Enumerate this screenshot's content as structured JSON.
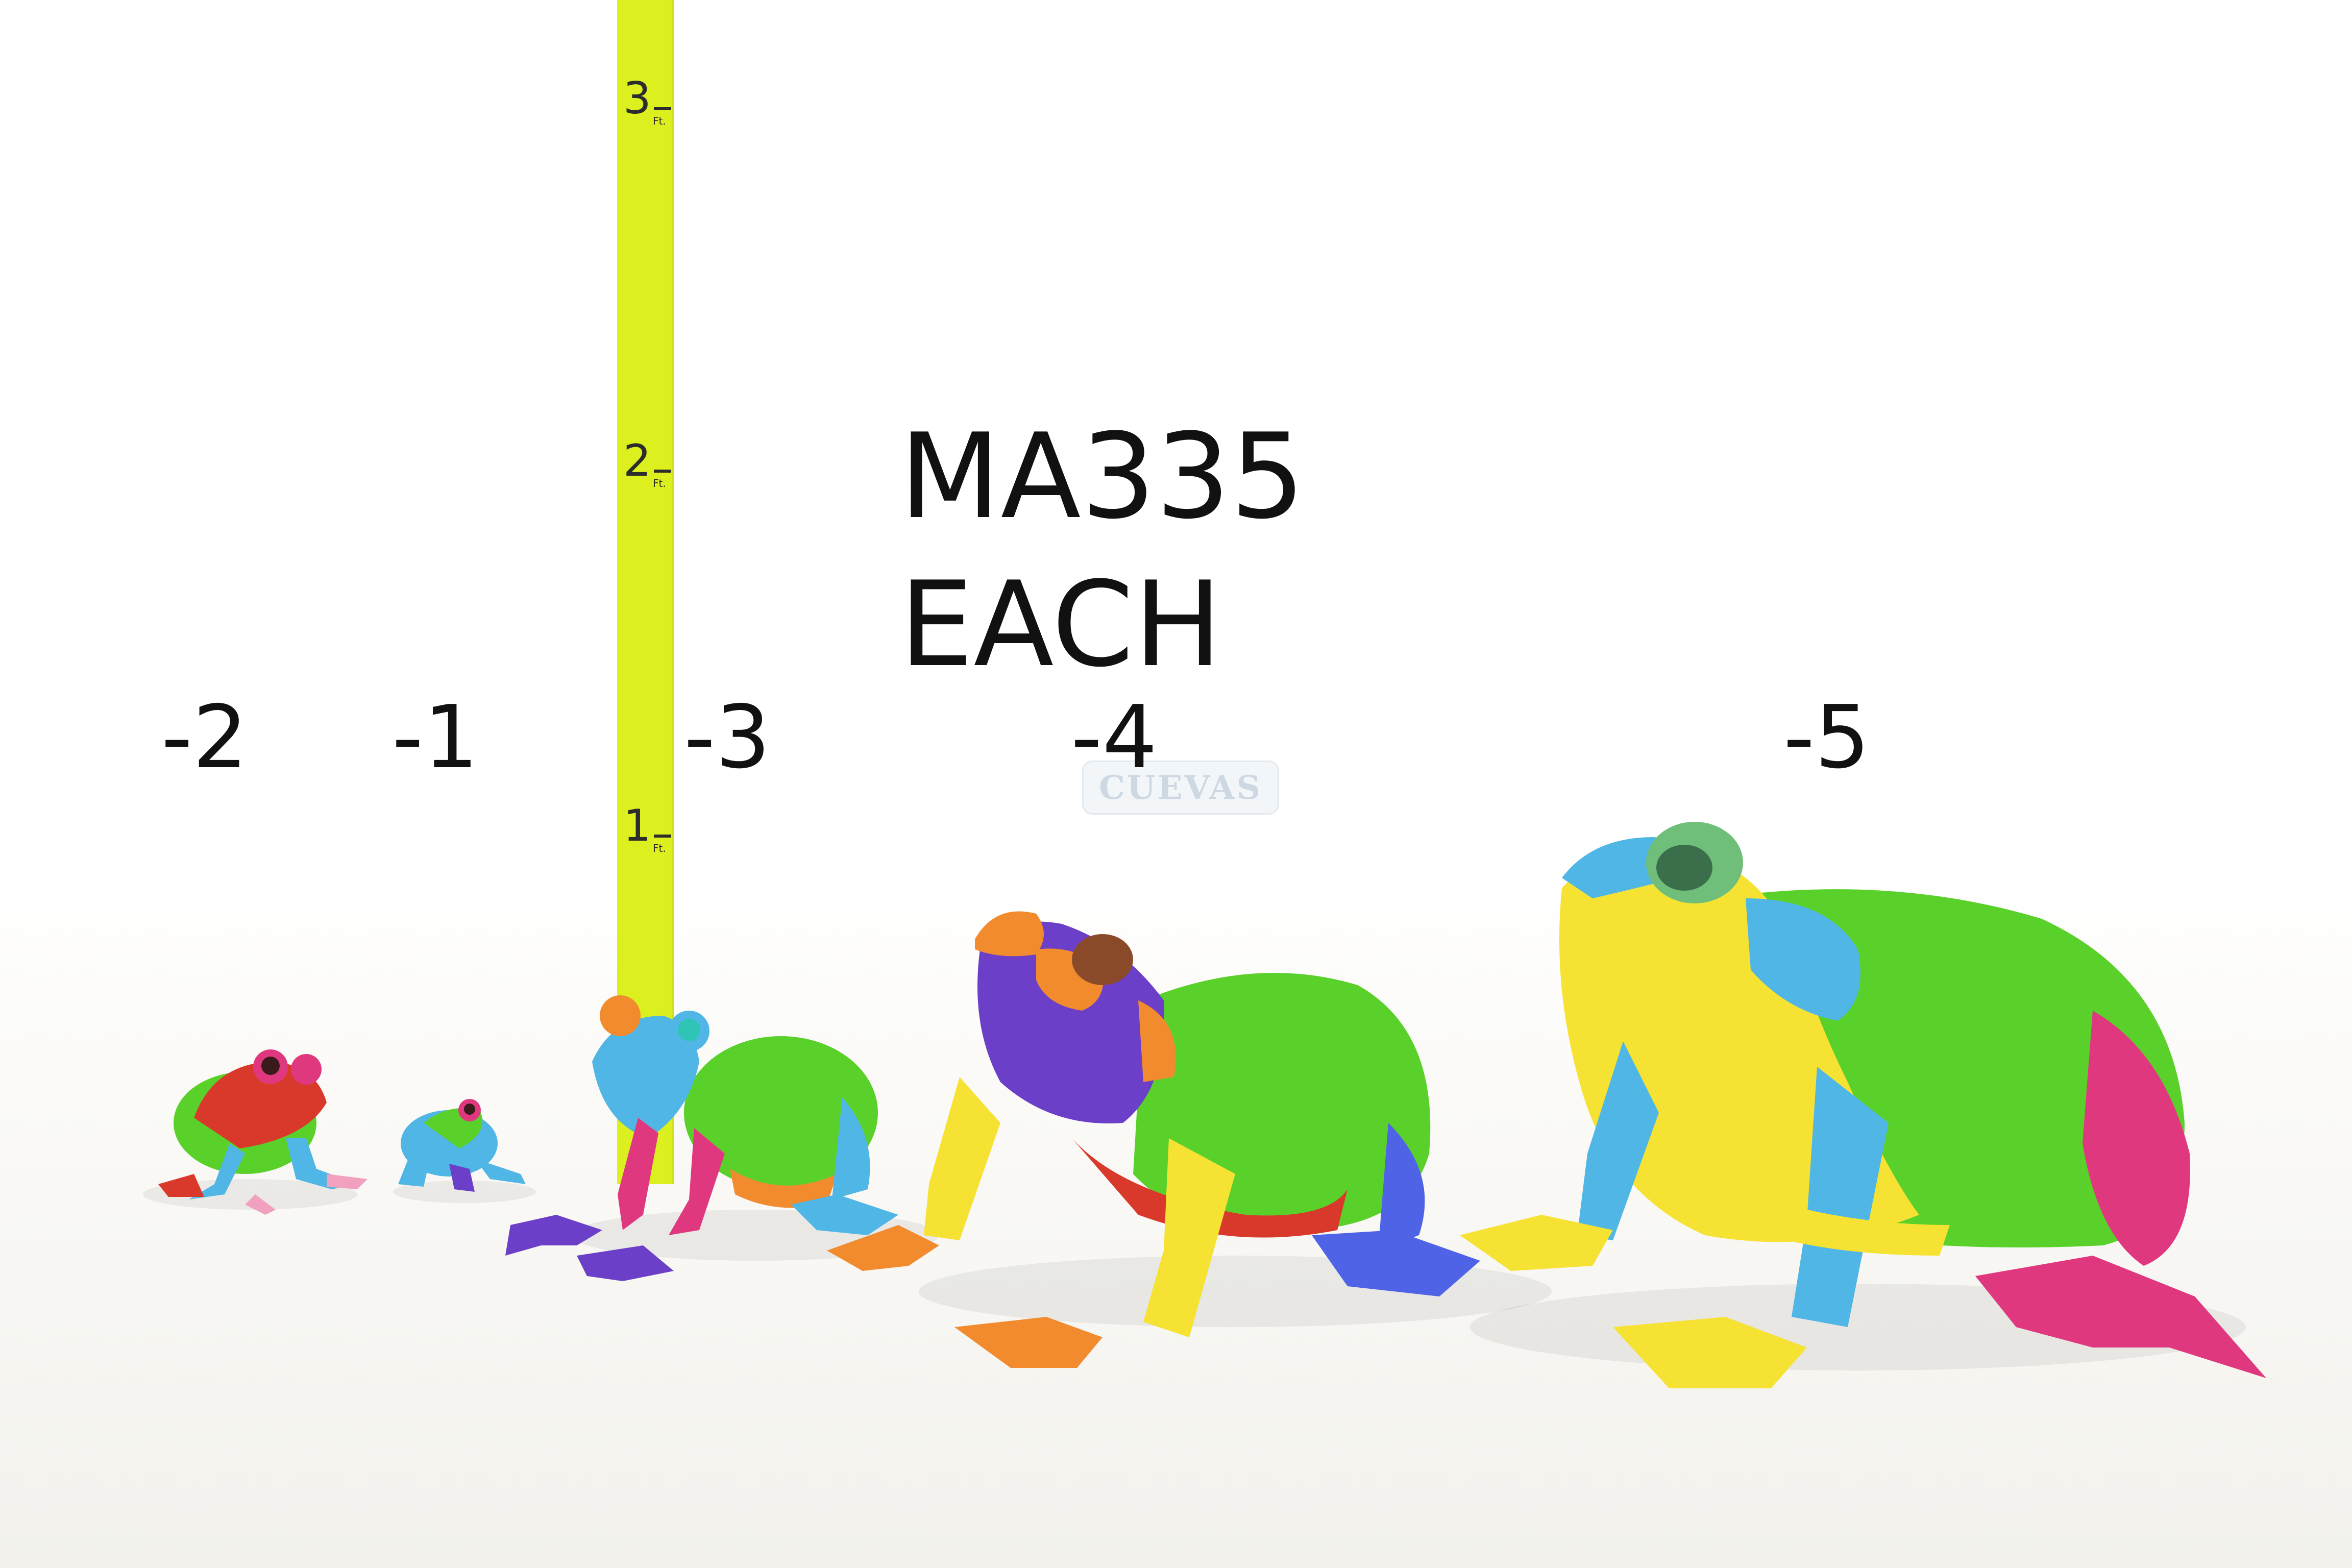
{
  "product": {
    "code": "MA335",
    "pricing_note": "EACH"
  },
  "sizes": [
    {
      "label": "-2"
    },
    {
      "label": "-1"
    },
    {
      "label": "-3"
    },
    {
      "label": "-4"
    },
    {
      "label": "-5"
    }
  ],
  "ruler": {
    "color": "#dcef1f",
    "marks": [
      "1",
      "2",
      "3"
    ],
    "unit": "Ft."
  },
  "watermark": {
    "text": "CUEVAS"
  },
  "colors": {
    "frog_green": "#5ad12a",
    "frog_yellow": "#f5e232",
    "frog_blue": "#4fb6e6",
    "frog_pink": "#e0387f",
    "frog_orange": "#f28a2e",
    "frog_purple": "#6b3fc8",
    "frog_red": "#d9392b"
  }
}
